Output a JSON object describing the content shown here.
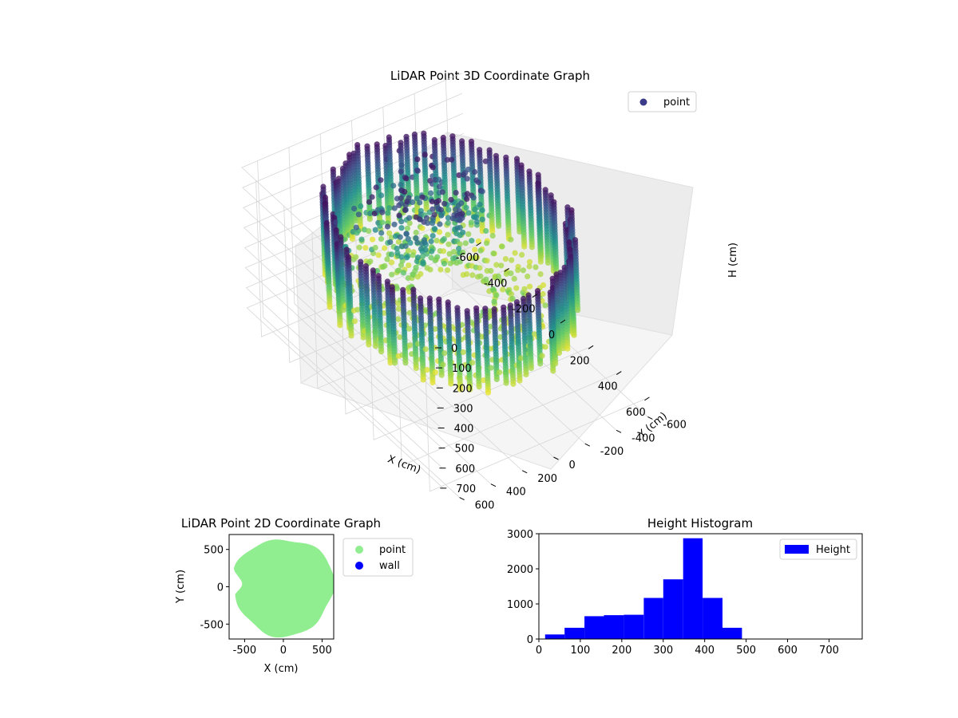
{
  "chart_data": [
    {
      "type": "scatter3d",
      "title": "LiDAR Point 3D Coordinate Graph",
      "xlabel": "X (cm)",
      "ylabel": "Y (cm)",
      "zlabel": "H (cm)",
      "xlim": [
        -700,
        700
      ],
      "ylim": [
        -700,
        700
      ],
      "zlim": [
        0,
        780
      ],
      "z_inverted": true,
      "xticks": [
        -600,
        -400,
        -200,
        0,
        200,
        400,
        600
      ],
      "yticks": [
        -600,
        -400,
        -200,
        0,
        200,
        400,
        600
      ],
      "zticks": [
        0,
        100,
        200,
        300,
        400,
        500,
        600,
        700
      ],
      "grid": true,
      "colormap": "viridis",
      "legend": {
        "placement": "top-right",
        "entries": [
          {
            "label": "point",
            "color": "#3b3b8a"
          }
        ]
      },
      "wall_radius_approx": 600,
      "height_range": [
        20,
        480
      ]
    },
    {
      "type": "scatter",
      "title": "LiDAR Point 2D Coordinate Graph",
      "xlabel": "X (cm)",
      "ylabel": "Y (cm)",
      "xlim": [
        -700,
        650
      ],
      "ylim": [
        -700,
        700
      ],
      "xticks": [
        -500,
        0,
        500
      ],
      "yticks": [
        -500,
        0,
        500
      ],
      "legend": {
        "placement": "outside-right",
        "entries": [
          {
            "label": "point",
            "color": "#90ee90"
          },
          {
            "label": "wall",
            "color": "#0000ff"
          }
        ]
      }
    },
    {
      "type": "bar",
      "title": "Height Histogram",
      "xlim": [
        0,
        780
      ],
      "ylim": [
        0,
        3000
      ],
      "xticks": [
        0,
        100,
        200,
        300,
        400,
        500,
        600,
        700
      ],
      "yticks": [
        0,
        1000,
        2000,
        3000
      ],
      "bins": [
        {
          "x0": 15,
          "x1": 62,
          "count": 130
        },
        {
          "x0": 62,
          "x1": 110,
          "count": 320
        },
        {
          "x0": 110,
          "x1": 157,
          "count": 650
        },
        {
          "x0": 157,
          "x1": 205,
          "count": 680
        },
        {
          "x0": 205,
          "x1": 253,
          "count": 690
        },
        {
          "x0": 253,
          "x1": 300,
          "count": 1170
        },
        {
          "x0": 300,
          "x1": 348,
          "count": 1700
        },
        {
          "x0": 348,
          "x1": 395,
          "count": 2870
        },
        {
          "x0": 395,
          "x1": 443,
          "count": 1170
        },
        {
          "x0": 443,
          "x1": 490,
          "count": 320
        }
      ],
      "color": "#0000ff",
      "legend": {
        "placement": "top-right",
        "entries": [
          {
            "label": "Height",
            "color": "#0000ff"
          }
        ]
      }
    }
  ]
}
